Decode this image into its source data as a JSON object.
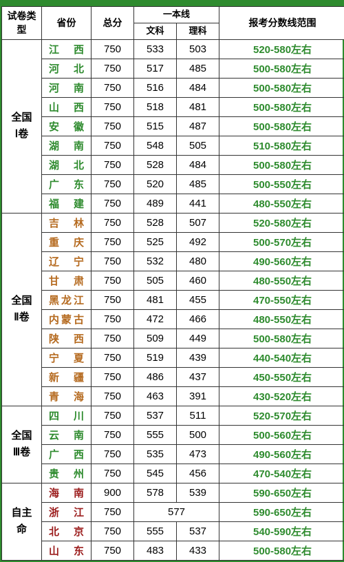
{
  "header": {
    "exam_type": "试卷类型",
    "province": "省份",
    "total": "总分",
    "tier1": "一本线",
    "arts": "文科",
    "science": "理科",
    "range": "报考分数线范围"
  },
  "groups": [
    {
      "name": "全国\nⅠ卷",
      "rows": [
        {
          "prov": "江西",
          "total": 750,
          "wen": "533",
          "li": "503",
          "range": "520-580左右",
          "color": "#2e8b2e"
        },
        {
          "prov": "河北",
          "total": 750,
          "wen": "517",
          "li": "485",
          "range": "500-580左右",
          "color": "#2e8b2e"
        },
        {
          "prov": "河南",
          "total": 750,
          "wen": "516",
          "li": "484",
          "range": "500-580左右",
          "color": "#2e8b2e"
        },
        {
          "prov": "山西",
          "total": 750,
          "wen": "518",
          "li": "481",
          "range": "500-580左右",
          "color": "#2e8b2e"
        },
        {
          "prov": "安徽",
          "total": 750,
          "wen": "515",
          "li": "487",
          "range": "500-580左右",
          "color": "#2e8b2e"
        },
        {
          "prov": "湖南",
          "total": 750,
          "wen": "548",
          "li": "505",
          "range": "510-580左右",
          "color": "#2e8b2e"
        },
        {
          "prov": "湖北",
          "total": 750,
          "wen": "528",
          "li": "484",
          "range": "500-580左右",
          "color": "#2e8b2e"
        },
        {
          "prov": "广东",
          "total": 750,
          "wen": "520",
          "li": "485",
          "range": "500-550左右",
          "color": "#2e8b2e"
        },
        {
          "prov": "福建",
          "total": 750,
          "wen": "489",
          "li": "441",
          "range": "480-550左右",
          "color": "#2e8b2e"
        }
      ]
    },
    {
      "name": "全国\nⅡ卷",
      "rows": [
        {
          "prov": "吉林",
          "total": 750,
          "wen": "528",
          "li": "507",
          "range": "520-580左右",
          "color": "#b56a1f"
        },
        {
          "prov": "重庆",
          "total": 750,
          "wen": "525",
          "li": "492",
          "range": "500-570左右",
          "color": "#b56a1f"
        },
        {
          "prov": "辽宁",
          "total": 750,
          "wen": "532",
          "li": "480",
          "range": "490-560左右",
          "color": "#b56a1f"
        },
        {
          "prov": "甘肃",
          "total": 750,
          "wen": "505",
          "li": "460",
          "range": "480-550左右",
          "color": "#b56a1f"
        },
        {
          "prov": "黑龙江",
          "total": 750,
          "wen": "481",
          "li": "455",
          "range": "470-550左右",
          "color": "#b56a1f"
        },
        {
          "prov": "内蒙古",
          "total": 750,
          "wen": "472",
          "li": "466",
          "range": "480-550左右",
          "color": "#b56a1f"
        },
        {
          "prov": "陕西",
          "total": 750,
          "wen": "509",
          "li": "449",
          "range": "500-580左右",
          "color": "#b56a1f"
        },
        {
          "prov": "宁夏",
          "total": 750,
          "wen": "519",
          "li": "439",
          "range": "440-540左右",
          "color": "#b56a1f"
        },
        {
          "prov": "新疆",
          "total": 750,
          "wen": "486",
          "li": "437",
          "range": "450-550左右",
          "color": "#b56a1f"
        },
        {
          "prov": "青海",
          "total": 750,
          "wen": "463",
          "li": "391",
          "range": "430-520左右",
          "color": "#b56a1f"
        }
      ]
    },
    {
      "name": "全国\nⅢ卷",
      "rows": [
        {
          "prov": "四川",
          "total": 750,
          "wen": "537",
          "li": "511",
          "range": "520-570左右",
          "color": "#2e8b2e"
        },
        {
          "prov": "云南",
          "total": 750,
          "wen": "555",
          "li": "500",
          "range": "500-560左右",
          "color": "#2e8b2e"
        },
        {
          "prov": "广西",
          "total": 750,
          "wen": "535",
          "li": "473",
          "range": "490-560左右",
          "color": "#2e8b2e"
        },
        {
          "prov": "贵州",
          "total": 750,
          "wen": "545",
          "li": "456",
          "range": "470-540左右",
          "color": "#2e8b2e"
        }
      ]
    },
    {
      "name": "自主\n命",
      "rows": [
        {
          "prov": "海南",
          "total": 900,
          "wen": "578",
          "li": "539",
          "range": "590-650左右",
          "color": "#9b1c1c"
        },
        {
          "prov": "浙江",
          "total": 750,
          "wen": "577",
          "li": "",
          "merge": true,
          "range": "590-650左右",
          "color": "#9b1c1c"
        },
        {
          "prov": "北京",
          "total": 750,
          "wen": "555",
          "li": "537",
          "range": "540-590左右",
          "color": "#9b1c1c"
        },
        {
          "prov": "山东",
          "total": 750,
          "wen": "483",
          "li": "433",
          "range": "500-580左右",
          "color": "#9b1c1c"
        }
      ]
    }
  ],
  "range_color": "#2e8b2e"
}
